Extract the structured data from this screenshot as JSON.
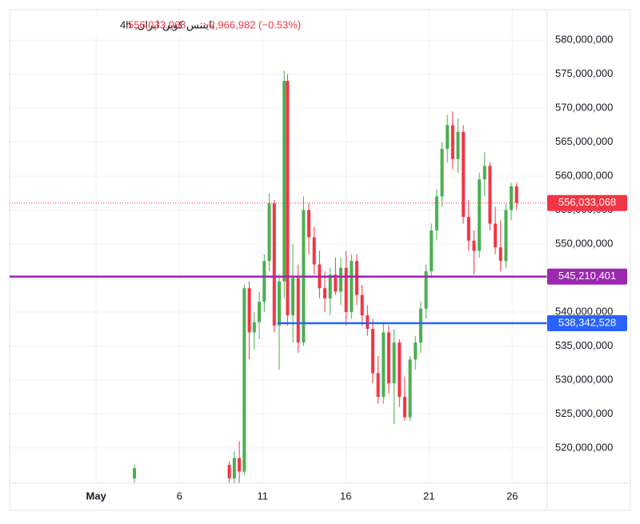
{
  "chart_data": {
    "type": "candlestick",
    "symbol": "بایننس کوین ایران, 4h",
    "header_price": "556,033,068",
    "header_change": "−2,966,982 (−0.53%)",
    "up_color": "#4caf50",
    "down_color": "#f23645",
    "grid": true,
    "xlim": [
      -4.2,
      28.1
    ],
    "xticks": [
      {
        "value": 1,
        "label": "May"
      },
      6,
      11,
      16,
      21,
      26
    ],
    "ylim": [
      514800000,
      584500000
    ],
    "yticks": [
      {
        "value": 520000000,
        "label": "520,000,000"
      },
      {
        "value": 525000000,
        "label": "525,000,000"
      },
      {
        "value": 530000000,
        "label": "530,000,000"
      },
      {
        "value": 535000000,
        "label": "535,000,000"
      },
      {
        "value": 540000000,
        "label": "540,000,000"
      },
      {
        "value": 545000000,
        "label": "545,000,000"
      },
      {
        "value": 550000000,
        "label": "550,000,000"
      },
      {
        "value": 555000000,
        "label": "555,000,000"
      },
      {
        "value": 560000000,
        "label": "560,000,000"
      },
      {
        "value": 565000000,
        "label": "565,000,000"
      },
      {
        "value": 570000000,
        "label": "570,000,000"
      },
      {
        "value": 575000000,
        "label": "575,000,000"
      },
      {
        "value": 580000000,
        "label": "580,000,000"
      }
    ],
    "x": [
      3.3,
      9.0,
      9.3,
      9.6,
      9.9,
      10.2,
      10.5,
      10.8,
      11.1,
      11.4,
      11.7,
      12.0,
      12.3,
      12.5,
      12.82,
      13.14,
      13.46,
      13.78,
      14.1,
      14.42,
      14.74,
      15.06,
      15.38,
      15.7,
      16.02,
      16.34,
      16.66,
      16.98,
      17.3,
      17.62,
      17.94,
      18.26,
      18.58,
      18.9,
      19.22,
      19.54,
      19.86,
      20.18,
      20.5,
      20.82,
      21.14,
      21.46,
      21.78,
      22.1,
      22.42,
      22.74,
      23.06,
      23.38,
      23.7,
      24.02,
      24.34,
      24.66,
      24.98,
      25.3,
      25.62,
      25.94,
      26.26
    ],
    "open": [
      515500000,
      517500000,
      515500000,
      518500000,
      516500000,
      543500000,
      537000000,
      538500000,
      541500000,
      547500000,
      556000000,
      538000000,
      544500000,
      574000000,
      539500000,
      545000000,
      535500000,
      555000000,
      551000000,
      547000000,
      543500000,
      542000000,
      545500000,
      543000000,
      546500000,
      540000000,
      547500000,
      542500000,
      539500000,
      537500000,
      531000000,
      527500000,
      537000000,
      529500000,
      535500000,
      527500000,
      524500000,
      533000000,
      535500000,
      540500000,
      546000000,
      552000000,
      557000000,
      564000000,
      567500000,
      562500000,
      566500000,
      554000000,
      550500000,
      549000000,
      559500000,
      561500000,
      553000000,
      549500000,
      547500000,
      555000000,
      558500000
    ],
    "high": [
      517500000,
      518000000,
      519500000,
      521000000,
      544000000,
      544500000,
      540000000,
      543000000,
      548500000,
      557500000,
      556500000,
      545500000,
      575500000,
      575000000,
      550000000,
      547000000,
      557000000,
      556000000,
      552500000,
      549000000,
      546000000,
      546500000,
      548000000,
      548000000,
      549000000,
      548500000,
      548500000,
      544000000,
      541000000,
      539000000,
      533500000,
      538500000,
      538000000,
      537500000,
      536000000,
      530500000,
      533500000,
      536500000,
      541500000,
      547000000,
      553000000,
      558000000,
      565000000,
      569000000,
      569500000,
      568500000,
      567500000,
      556500000,
      552000000,
      560500000,
      563500000,
      562000000,
      555500000,
      553500000,
      556000000,
      559000000,
      559000000
    ],
    "low": [
      514800000,
      514800000,
      514800000,
      514800000,
      516000000,
      533000000,
      534500000,
      536000000,
      540000000,
      546000000,
      537000000,
      531500000,
      542000000,
      538000000,
      535500000,
      534000000,
      535000000,
      548500000,
      545500000,
      542000000,
      540000000,
      539500000,
      542500000,
      541000000,
      538000000,
      539000000,
      541000000,
      538000000,
      536500000,
      529500000,
      526500000,
      526500000,
      528000000,
      523500000,
      526000000,
      524000000,
      524000000,
      531500000,
      534000000,
      539000000,
      545000000,
      550500000,
      555500000,
      562000000,
      561000000,
      560500000,
      553000000,
      549000000,
      545500000,
      548000000,
      557000000,
      552000000,
      548500000,
      546000000,
      546500000,
      553500000,
      555000000
    ],
    "close": [
      517000000,
      515500000,
      518500000,
      516500000,
      543500000,
      537000000,
      538500000,
      541500000,
      547500000,
      556000000,
      538000000,
      544500000,
      574000000,
      539500000,
      545000000,
      535500000,
      555000000,
      551000000,
      547000000,
      543500000,
      542000000,
      545500000,
      543000000,
      546500000,
      540000000,
      547500000,
      542500000,
      539500000,
      537500000,
      531000000,
      527500000,
      537000000,
      529500000,
      535500000,
      527500000,
      524500000,
      533000000,
      535500000,
      540500000,
      546000000,
      552000000,
      557000000,
      564000000,
      567500000,
      562500000,
      566500000,
      554000000,
      550500000,
      549000000,
      559500000,
      561500000,
      553000000,
      549500000,
      547500000,
      555000000,
      558500000,
      556033068
    ],
    "last_price": {
      "value": 556033068,
      "label": "556,033,068",
      "color": "#f23645"
    },
    "hlines": [
      {
        "value": 545210401,
        "label": "545,210,401",
        "color": "#9c27b0",
        "x_start": -4.2
      },
      {
        "value": 538342528,
        "label": "538,342,528",
        "color": "#2962ff",
        "x_start": 11.9
      }
    ]
  }
}
